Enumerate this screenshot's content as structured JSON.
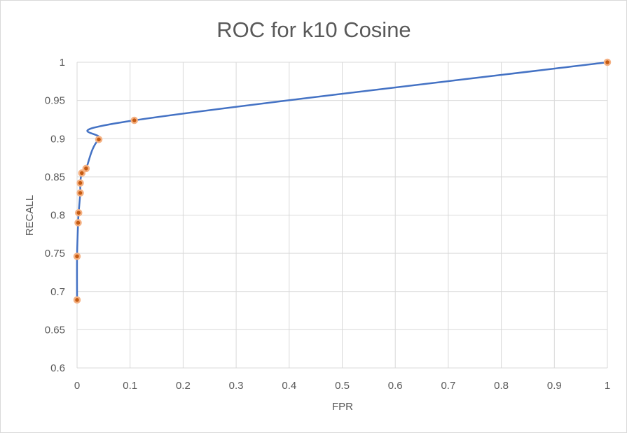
{
  "chart_data": {
    "type": "scatter",
    "title": "ROC for k10 Cosine",
    "xlabel": "FPR",
    "ylabel": "RECALL",
    "xlim": [
      0,
      1
    ],
    "ylim": [
      0.6,
      1
    ],
    "x_ticks": [
      "0",
      "0.1",
      "0.2",
      "0.3",
      "0.4",
      "0.5",
      "0.6",
      "0.7",
      "0.8",
      "0.9",
      "1"
    ],
    "y_ticks": [
      "0.6",
      "0.65",
      "0.7",
      "0.75",
      "0.8",
      "0.85",
      "0.9",
      "0.95",
      "1"
    ],
    "grid": true,
    "legend": "none",
    "line_style": "smooth",
    "series": [
      {
        "x": [
          0.0,
          0.0,
          0.002,
          0.003,
          0.006,
          0.006,
          0.009,
          0.017,
          0.041,
          0.108,
          1.0
        ],
        "y": [
          0.689,
          0.746,
          0.79,
          0.803,
          0.829,
          0.842,
          0.855,
          0.861,
          0.899,
          0.924,
          1.0
        ]
      }
    ],
    "colors": {
      "line": "#4472c4",
      "marker_fill": "#c55a11",
      "marker_edge": "#f4b183",
      "grid": "#d9d9d9",
      "text": "#595959"
    }
  }
}
